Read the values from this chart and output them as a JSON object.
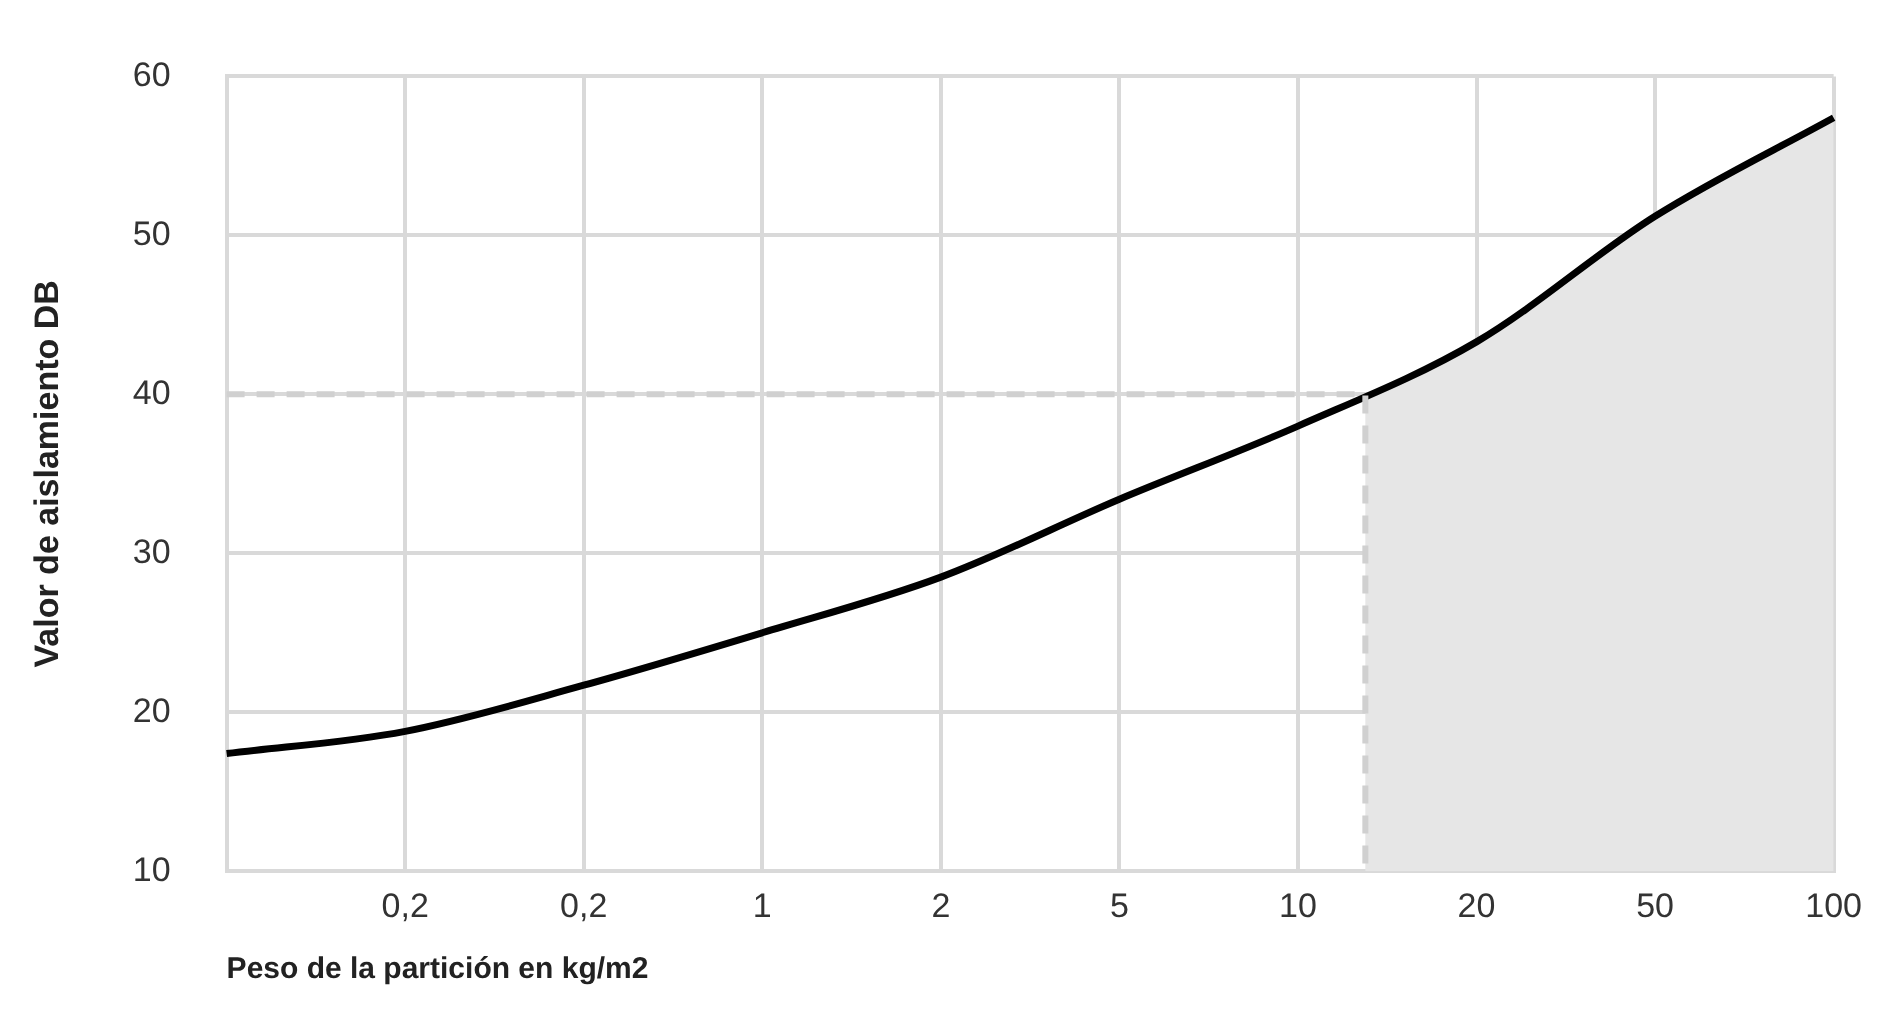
{
  "chart_data": {
    "type": "line",
    "xlabel": "Peso de la partición en kg/m2",
    "ylabel": "Valor de aislamiento DB",
    "categories": [
      null,
      "0,2",
      "0,2",
      "1",
      "2",
      "5",
      "10",
      "20",
      "50",
      "100"
    ],
    "series": [
      {
        "type": "area",
        "color": "#e6e6e6",
        "values": [
          null,
          null,
          null,
          null,
          null,
          null,
          38,
          43.3,
          51.2,
          57.4
        ]
      },
      {
        "color": "#000000",
        "values": [
          17.4,
          18.8,
          21.7,
          25,
          28.5,
          33.4,
          38,
          43.3,
          51.2,
          57.4
        ]
      }
    ],
    "ylim": [
      10,
      60
    ],
    "yticks": [
      10,
      20,
      30,
      40,
      50,
      60
    ],
    "grid": true,
    "legend": false,
    "marker": "none",
    "line_style": "solid",
    "ref_lines": [
      {
        "axis": "y",
        "value": 40,
        "color": "#d0d0d0",
        "line_style": "dashed"
      }
    ]
  }
}
